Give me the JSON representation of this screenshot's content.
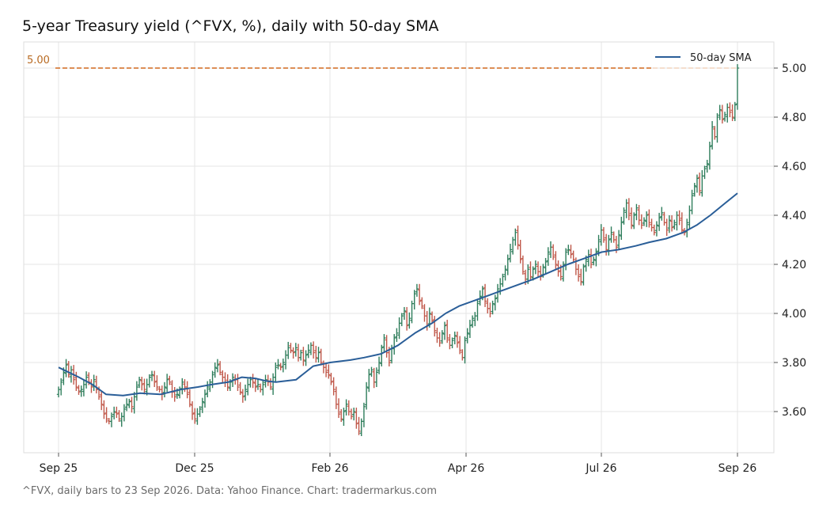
{
  "title": "5-year Treasury yield (^FVX, %), daily with 50-day SMA",
  "footer": "^FVX, daily bars to 23 Sep 2026. Data: Yahoo Finance. Chart: tradermarkus.com",
  "colors": {
    "up": "#2e7d5b",
    "down": "#c0584a",
    "sma": "#2a5e98",
    "reference": "#d2691e",
    "grid": "#e6e6e6",
    "spine": "#dddddd"
  },
  "chart_data": {
    "type": "ohlc",
    "x_ticks": [
      "Sep 25",
      "Dec 25",
      "Feb 26",
      "Apr 26",
      "Jul 26",
      "Sep 26"
    ],
    "y_ticks": [
      "3.60",
      "3.80",
      "4.00",
      "4.20",
      "4.40",
      "4.60",
      "4.80",
      "5.00"
    ],
    "ylim": [
      3.45,
      5.12
    ],
    "grid": true,
    "legend": {
      "position": "top-right",
      "entries": [
        "50-day SMA"
      ]
    },
    "reference_line": {
      "value": 5.0,
      "label": "5.00"
    },
    "ohlc_close": [
      3.69,
      3.72,
      3.76,
      3.79,
      3.75,
      3.77,
      3.73,
      3.7,
      3.68,
      3.69,
      3.71,
      3.74,
      3.72,
      3.7,
      3.73,
      3.69,
      3.66,
      3.63,
      3.59,
      3.57,
      3.56,
      3.58,
      3.6,
      3.59,
      3.57,
      3.58,
      3.61,
      3.63,
      3.64,
      3.62,
      3.66,
      3.7,
      3.73,
      3.71,
      3.69,
      3.71,
      3.74,
      3.75,
      3.72,
      3.7,
      3.69,
      3.67,
      3.7,
      3.73,
      3.72,
      3.68,
      3.66,
      3.67,
      3.69,
      3.72,
      3.7,
      3.67,
      3.63,
      3.59,
      3.57,
      3.59,
      3.61,
      3.64,
      3.67,
      3.7,
      3.72,
      3.75,
      3.78,
      3.79,
      3.76,
      3.74,
      3.72,
      3.7,
      3.72,
      3.74,
      3.73,
      3.7,
      3.68,
      3.66,
      3.69,
      3.71,
      3.73,
      3.72,
      3.7,
      3.71,
      3.69,
      3.71,
      3.73,
      3.72,
      3.7,
      3.74,
      3.78,
      3.79,
      3.78,
      3.8,
      3.83,
      3.86,
      3.85,
      3.84,
      3.86,
      3.82,
      3.84,
      3.81,
      3.83,
      3.85,
      3.87,
      3.84,
      3.82,
      3.84,
      3.8,
      3.78,
      3.76,
      3.75,
      3.72,
      3.69,
      3.63,
      3.59,
      3.57,
      3.6,
      3.63,
      3.6,
      3.58,
      3.6,
      3.55,
      3.52,
      3.56,
      3.62,
      3.7,
      3.75,
      3.77,
      3.72,
      3.76,
      3.8,
      3.86,
      3.9,
      3.84,
      3.8,
      3.86,
      3.9,
      3.92,
      3.96,
      3.99,
      4.01,
      3.95,
      3.98,
      4.04,
      4.08,
      4.1,
      4.05,
      4.03,
      3.99,
      3.95,
      4.0,
      3.97,
      3.93,
      3.9,
      3.88,
      3.92,
      3.95,
      3.9,
      3.87,
      3.89,
      3.91,
      3.88,
      3.85,
      3.82,
      3.89,
      3.92,
      3.95,
      3.98,
      3.99,
      4.04,
      4.07,
      4.1,
      4.05,
      4.02,
      4.0,
      4.04,
      4.06,
      4.1,
      4.12,
      4.15,
      4.18,
      4.22,
      4.26,
      4.3,
      4.33,
      4.28,
      4.22,
      4.17,
      4.14,
      4.18,
      4.15,
      4.18,
      4.2,
      4.17,
      4.15,
      4.19,
      4.21,
      4.25,
      4.27,
      4.23,
      4.2,
      4.17,
      4.15,
      4.2,
      4.25,
      4.26,
      4.24,
      4.22,
      4.18,
      4.15,
      4.13,
      4.19,
      4.22,
      4.24,
      4.2,
      4.22,
      4.25,
      4.3,
      4.34,
      4.3,
      4.26,
      4.3,
      4.33,
      4.3,
      4.27,
      4.32,
      4.37,
      4.42,
      4.45,
      4.4,
      4.36,
      4.4,
      4.43,
      4.38,
      4.36,
      4.38,
      4.4,
      4.37,
      4.35,
      4.33,
      4.36,
      4.39,
      4.41,
      4.37,
      4.34,
      4.38,
      4.35,
      4.37,
      4.4,
      4.38,
      4.34,
      4.33,
      4.37,
      4.42,
      4.48,
      4.52,
      4.55,
      4.5,
      4.56,
      4.59,
      4.61,
      4.68,
      4.76,
      4.72,
      4.8,
      4.83,
      4.79,
      4.81,
      4.84,
      4.82,
      4.8,
      4.85,
      5.0
    ],
    "sma_50": [
      [
        0,
        3.78
      ],
      [
        0.06,
        3.74
      ],
      [
        0.1,
        3.71
      ],
      [
        0.14,
        3.67
      ],
      [
        0.19,
        3.665
      ],
      [
        0.24,
        3.675
      ],
      [
        0.3,
        3.67
      ],
      [
        0.36,
        3.69
      ],
      [
        0.41,
        3.7
      ],
      [
        0.45,
        3.71
      ],
      [
        0.5,
        3.72
      ],
      [
        0.54,
        3.74
      ],
      [
        0.58,
        3.735
      ],
      [
        0.61,
        3.725
      ],
      [
        0.64,
        3.72
      ],
      [
        0.7,
        3.73
      ],
      [
        0.75,
        3.785
      ],
      [
        0.8,
        3.8
      ],
      [
        0.86,
        3.81
      ],
      [
        0.9,
        3.82
      ],
      [
        0.95,
        3.835
      ],
      [
        1.0,
        3.87
      ],
      [
        1.05,
        3.92
      ],
      [
        1.1,
        3.96
      ],
      [
        1.14,
        4.0
      ],
      [
        1.18,
        4.03
      ],
      [
        1.24,
        4.06
      ],
      [
        1.3,
        4.09
      ],
      [
        1.36,
        4.12
      ],
      [
        1.4,
        4.14
      ],
      [
        1.45,
        4.17
      ],
      [
        1.5,
        4.2
      ],
      [
        1.55,
        4.225
      ],
      [
        1.6,
        4.25
      ],
      [
        1.65,
        4.26
      ],
      [
        1.7,
        4.275
      ],
      [
        1.74,
        4.29
      ],
      [
        1.79,
        4.305
      ],
      [
        1.84,
        4.33
      ],
      [
        1.88,
        4.36
      ],
      [
        1.92,
        4.4
      ],
      [
        1.96,
        4.445
      ],
      [
        2.0,
        4.49
      ]
    ]
  }
}
